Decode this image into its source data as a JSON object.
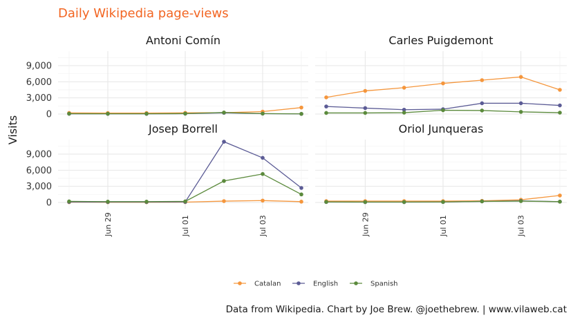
{
  "chart_data": {
    "type": "line",
    "title": "Daily Wikipedia page-views",
    "ylabel": "Visits",
    "xlabel": "",
    "caption": "Data from Wikipedia. Chart by Joe Brew. @joethebrew. | www.vilaweb.cat",
    "x": [
      "2017-06-28",
      "2017-06-29",
      "2017-06-30",
      "2017-07-01",
      "2017-07-02",
      "2017-07-03",
      "2017-07-04"
    ],
    "x_tick_labels": [
      {
        "x": "2017-06-29",
        "label": "Jun 29"
      },
      {
        "x": "2017-07-01",
        "label": "Jul 01"
      },
      {
        "x": "2017-07-03",
        "label": "Jul 03"
      }
    ],
    "y_ticks": [
      {
        "value": 0,
        "label": "0"
      },
      {
        "value": 3000,
        "label": "3,000"
      },
      {
        "value": 6000,
        "label": "6,000"
      },
      {
        "value": 9000,
        "label": "9,000"
      }
    ],
    "ylim": [
      0,
      12300
    ],
    "grid": true,
    "legend_position": "bottom",
    "legend": [
      "Catalan",
      "English",
      "Spanish"
    ],
    "colors": {
      "Catalan": "#f5963c",
      "English": "#5b5b95",
      "Spanish": "#5b8a3c"
    },
    "panels": [
      {
        "name": "Antoni Comín",
        "series": [
          {
            "name": "Catalan",
            "values": [
              200,
              180,
              180,
              220,
              250,
              450,
              1200
            ]
          },
          {
            "name": "English",
            "values": [
              40,
              30,
              30,
              60,
              220,
              70,
              20
            ]
          },
          {
            "name": "Spanish",
            "values": [
              60,
              50,
              50,
              80,
              280,
              80,
              30
            ]
          }
        ]
      },
      {
        "name": "Carles Puigdemont",
        "series": [
          {
            "name": "Catalan",
            "values": [
              3100,
              4300,
              4900,
              5700,
              6300,
              6900,
              4500
            ]
          },
          {
            "name": "English",
            "values": [
              1400,
              1100,
              800,
              900,
              2000,
              2000,
              1600
            ]
          },
          {
            "name": "Spanish",
            "values": [
              200,
              200,
              250,
              700,
              650,
              400,
              250
            ]
          }
        ]
      },
      {
        "name": "Josep Borrell",
        "series": [
          {
            "name": "Catalan",
            "values": [
              50,
              40,
              40,
              60,
              250,
              350,
              150
            ]
          },
          {
            "name": "English",
            "values": [
              100,
              80,
              80,
              100,
              11300,
              8300,
              2700
            ]
          },
          {
            "name": "Spanish",
            "values": [
              200,
              150,
              150,
              200,
              4000,
              5300,
              1500
            ]
          }
        ]
      },
      {
        "name": "Oriol Junqueras",
        "series": [
          {
            "name": "Catalan",
            "values": [
              250,
              250,
              250,
              250,
              300,
              500,
              1300
            ]
          },
          {
            "name": "English",
            "values": [
              80,
              60,
              60,
              80,
              200,
              300,
              150
            ]
          },
          {
            "name": "Spanish",
            "values": [
              100,
              80,
              80,
              100,
              200,
              250,
              150
            ]
          }
        ]
      }
    ]
  }
}
